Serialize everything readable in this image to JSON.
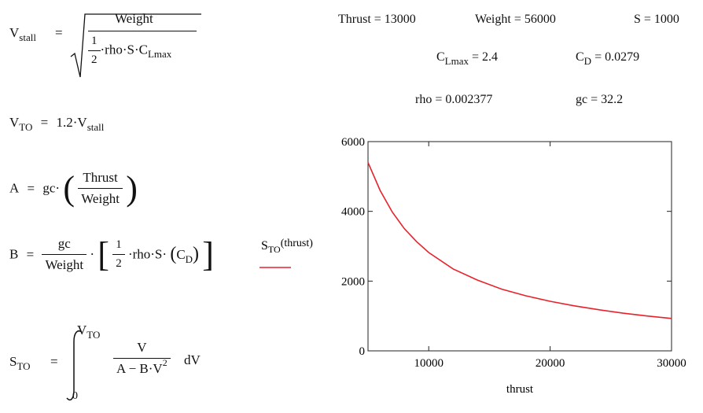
{
  "equations": {
    "vstall": {
      "lhs": "V",
      "lhs_sub": "stall",
      "eq": "=",
      "numerator": "Weight",
      "den_num": "1",
      "den_den": "2",
      "den_rest": "·rho·S·C",
      "den_sub": "Lmax"
    },
    "vto": {
      "lhs": "V",
      "lhs_sub": "TO",
      "eq": "=",
      "rhs": "1.2·V",
      "rhs_sub": "stall"
    },
    "a": {
      "lhs": "A",
      "eq": "=",
      "prefix": "gc·",
      "numerator": "Thrust",
      "denominator": "Weight"
    },
    "b": {
      "lhs": "B",
      "eq": "=",
      "num": "gc",
      "den": "Weight",
      "dot": "·",
      "half_num": "1",
      "half_den": "2",
      "rest": "·rho·S·",
      "cd": "C",
      "cd_sub": "D"
    },
    "sto": {
      "lhs": "S",
      "lhs_sub": "TO",
      "eq": "=",
      "upper": "V",
      "upper_sub": "TO",
      "lower": "0",
      "num": "V",
      "den": "A − B·V",
      "den_sup": "2",
      "dv": "dV"
    }
  },
  "params": {
    "thrust": "Thrust = 13000",
    "weight": "Weight = 56000",
    "s": "S = 1000",
    "clmax_name": "C",
    "clmax_sub": "Lmax",
    "clmax_val": "= 2.4",
    "cd_name": "C",
    "cd_sub": "D",
    "cd_val": "= 0.0279",
    "rho": "rho = 0.002377",
    "gc": "gc = 32.2"
  },
  "chart_data": {
    "type": "line",
    "xlabel": "thrust",
    "ylim": [
      0,
      6000
    ],
    "xlim": [
      5000,
      30000
    ],
    "xticks": [
      10000,
      20000,
      30000
    ],
    "yticks": [
      0,
      2000,
      4000,
      6000
    ],
    "grid": false,
    "series": [
      {
        "name": "STO(thrust)",
        "color": "#e8222b",
        "x": [
          5000,
          6000,
          7000,
          8000,
          9000,
          10000,
          12000,
          14000,
          16000,
          18000,
          20000,
          22000,
          24000,
          26000,
          28000,
          30000
        ],
        "y": [
          5400,
          4600,
          3980,
          3500,
          3130,
          2820,
          2350,
          2030,
          1770,
          1580,
          1420,
          1290,
          1180,
          1080,
          1000,
          930
        ]
      }
    ],
    "legend": {
      "label": "S",
      "label_sub": "TO",
      "label_arg": "(thrust)",
      "position": "left"
    }
  }
}
